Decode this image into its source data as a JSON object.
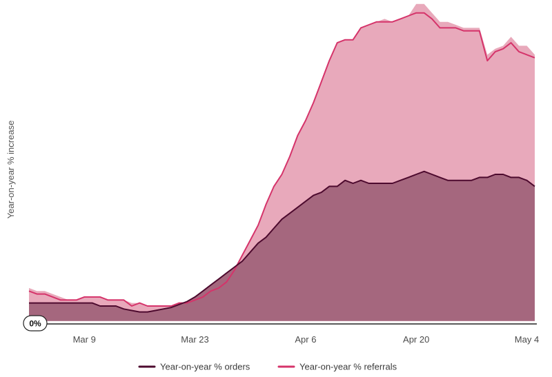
{
  "chart_data": {
    "type": "area",
    "title": "",
    "xlabel": "",
    "ylabel": "Year-on-year % increase",
    "x_ticks": [
      "Mar 9",
      "Mar 23",
      "Apr 6",
      "Apr 20",
      "May 4"
    ],
    "x_tick_positions": [
      7,
      21,
      35,
      49,
      63
    ],
    "zero_label": "0%",
    "x": [
      0,
      1,
      2,
      3,
      4,
      5,
      6,
      7,
      8,
      9,
      10,
      11,
      12,
      13,
      14,
      15,
      16,
      17,
      18,
      19,
      20,
      21,
      22,
      23,
      24,
      25,
      26,
      27,
      28,
      29,
      30,
      31,
      32,
      33,
      34,
      35,
      36,
      37,
      38,
      39,
      40,
      41,
      42,
      43,
      44,
      45,
      46,
      47,
      48,
      49,
      50,
      51,
      52,
      53,
      54,
      55,
      56,
      57,
      58,
      59,
      60,
      61,
      62,
      63,
      64
    ],
    "xlim": [
      0,
      64
    ],
    "ylim": [
      -4,
      102
    ],
    "grid": false,
    "legend_position": "bottom-center",
    "series": [
      {
        "name": "Year-on-year % referrals",
        "color": "#d5336a",
        "fill": "#e8a9bb",
        "values": [
          7,
          6,
          6,
          5,
          4,
          4,
          4,
          5,
          5,
          5,
          4,
          4,
          4,
          2,
          3,
          2,
          2,
          2,
          2,
          3,
          3,
          4,
          5,
          7,
          8,
          10,
          14,
          19,
          24,
          29,
          36,
          42,
          46,
          52,
          59,
          64,
          70,
          77,
          84,
          90,
          91,
          91,
          95,
          96,
          97,
          97,
          97,
          98,
          99,
          100,
          100,
          98,
          95,
          95,
          95,
          94,
          94,
          94,
          84,
          87,
          88,
          90,
          87,
          86,
          85
        ],
        "fill_values": [
          8,
          7,
          7,
          6,
          5,
          4,
          4,
          5,
          5,
          5,
          4,
          4,
          4,
          3,
          3,
          2,
          2,
          2,
          2,
          3,
          3,
          4,
          5,
          7,
          8,
          10,
          14,
          19,
          24,
          29,
          36,
          42,
          46,
          52,
          59,
          64,
          70,
          77,
          84,
          90,
          91,
          91,
          95,
          96,
          97,
          98,
          97,
          98,
          99,
          103,
          103,
          100,
          97,
          97,
          96,
          95,
          95,
          95,
          86,
          88,
          89,
          92,
          89,
          89,
          86
        ]
      },
      {
        "name": "Year-on-year % orders",
        "color": "#4d0a2e",
        "fill": "#a5677e",
        "values": [
          3,
          3,
          3,
          3,
          3,
          3,
          3,
          3,
          3,
          2,
          2,
          2,
          1,
          0.5,
          0,
          0,
          0.5,
          1,
          1.5,
          2.5,
          3.5,
          5,
          7,
          9,
          11,
          13,
          15,
          17,
          20,
          23,
          25,
          28,
          31,
          33,
          35,
          37,
          39,
          40,
          42,
          42,
          44,
          43,
          44,
          43,
          43,
          43,
          43,
          44,
          45,
          46,
          47,
          46,
          45,
          44,
          44,
          44,
          44,
          45,
          45,
          46,
          46,
          45,
          45,
          44,
          42
        ]
      }
    ]
  },
  "colors": {
    "orders_line": "#4d0a2e",
    "orders_fill": "#a5677e",
    "referrals_line": "#d5336a",
    "referrals_fill": "#e8a9bb",
    "axis": "#222222"
  }
}
